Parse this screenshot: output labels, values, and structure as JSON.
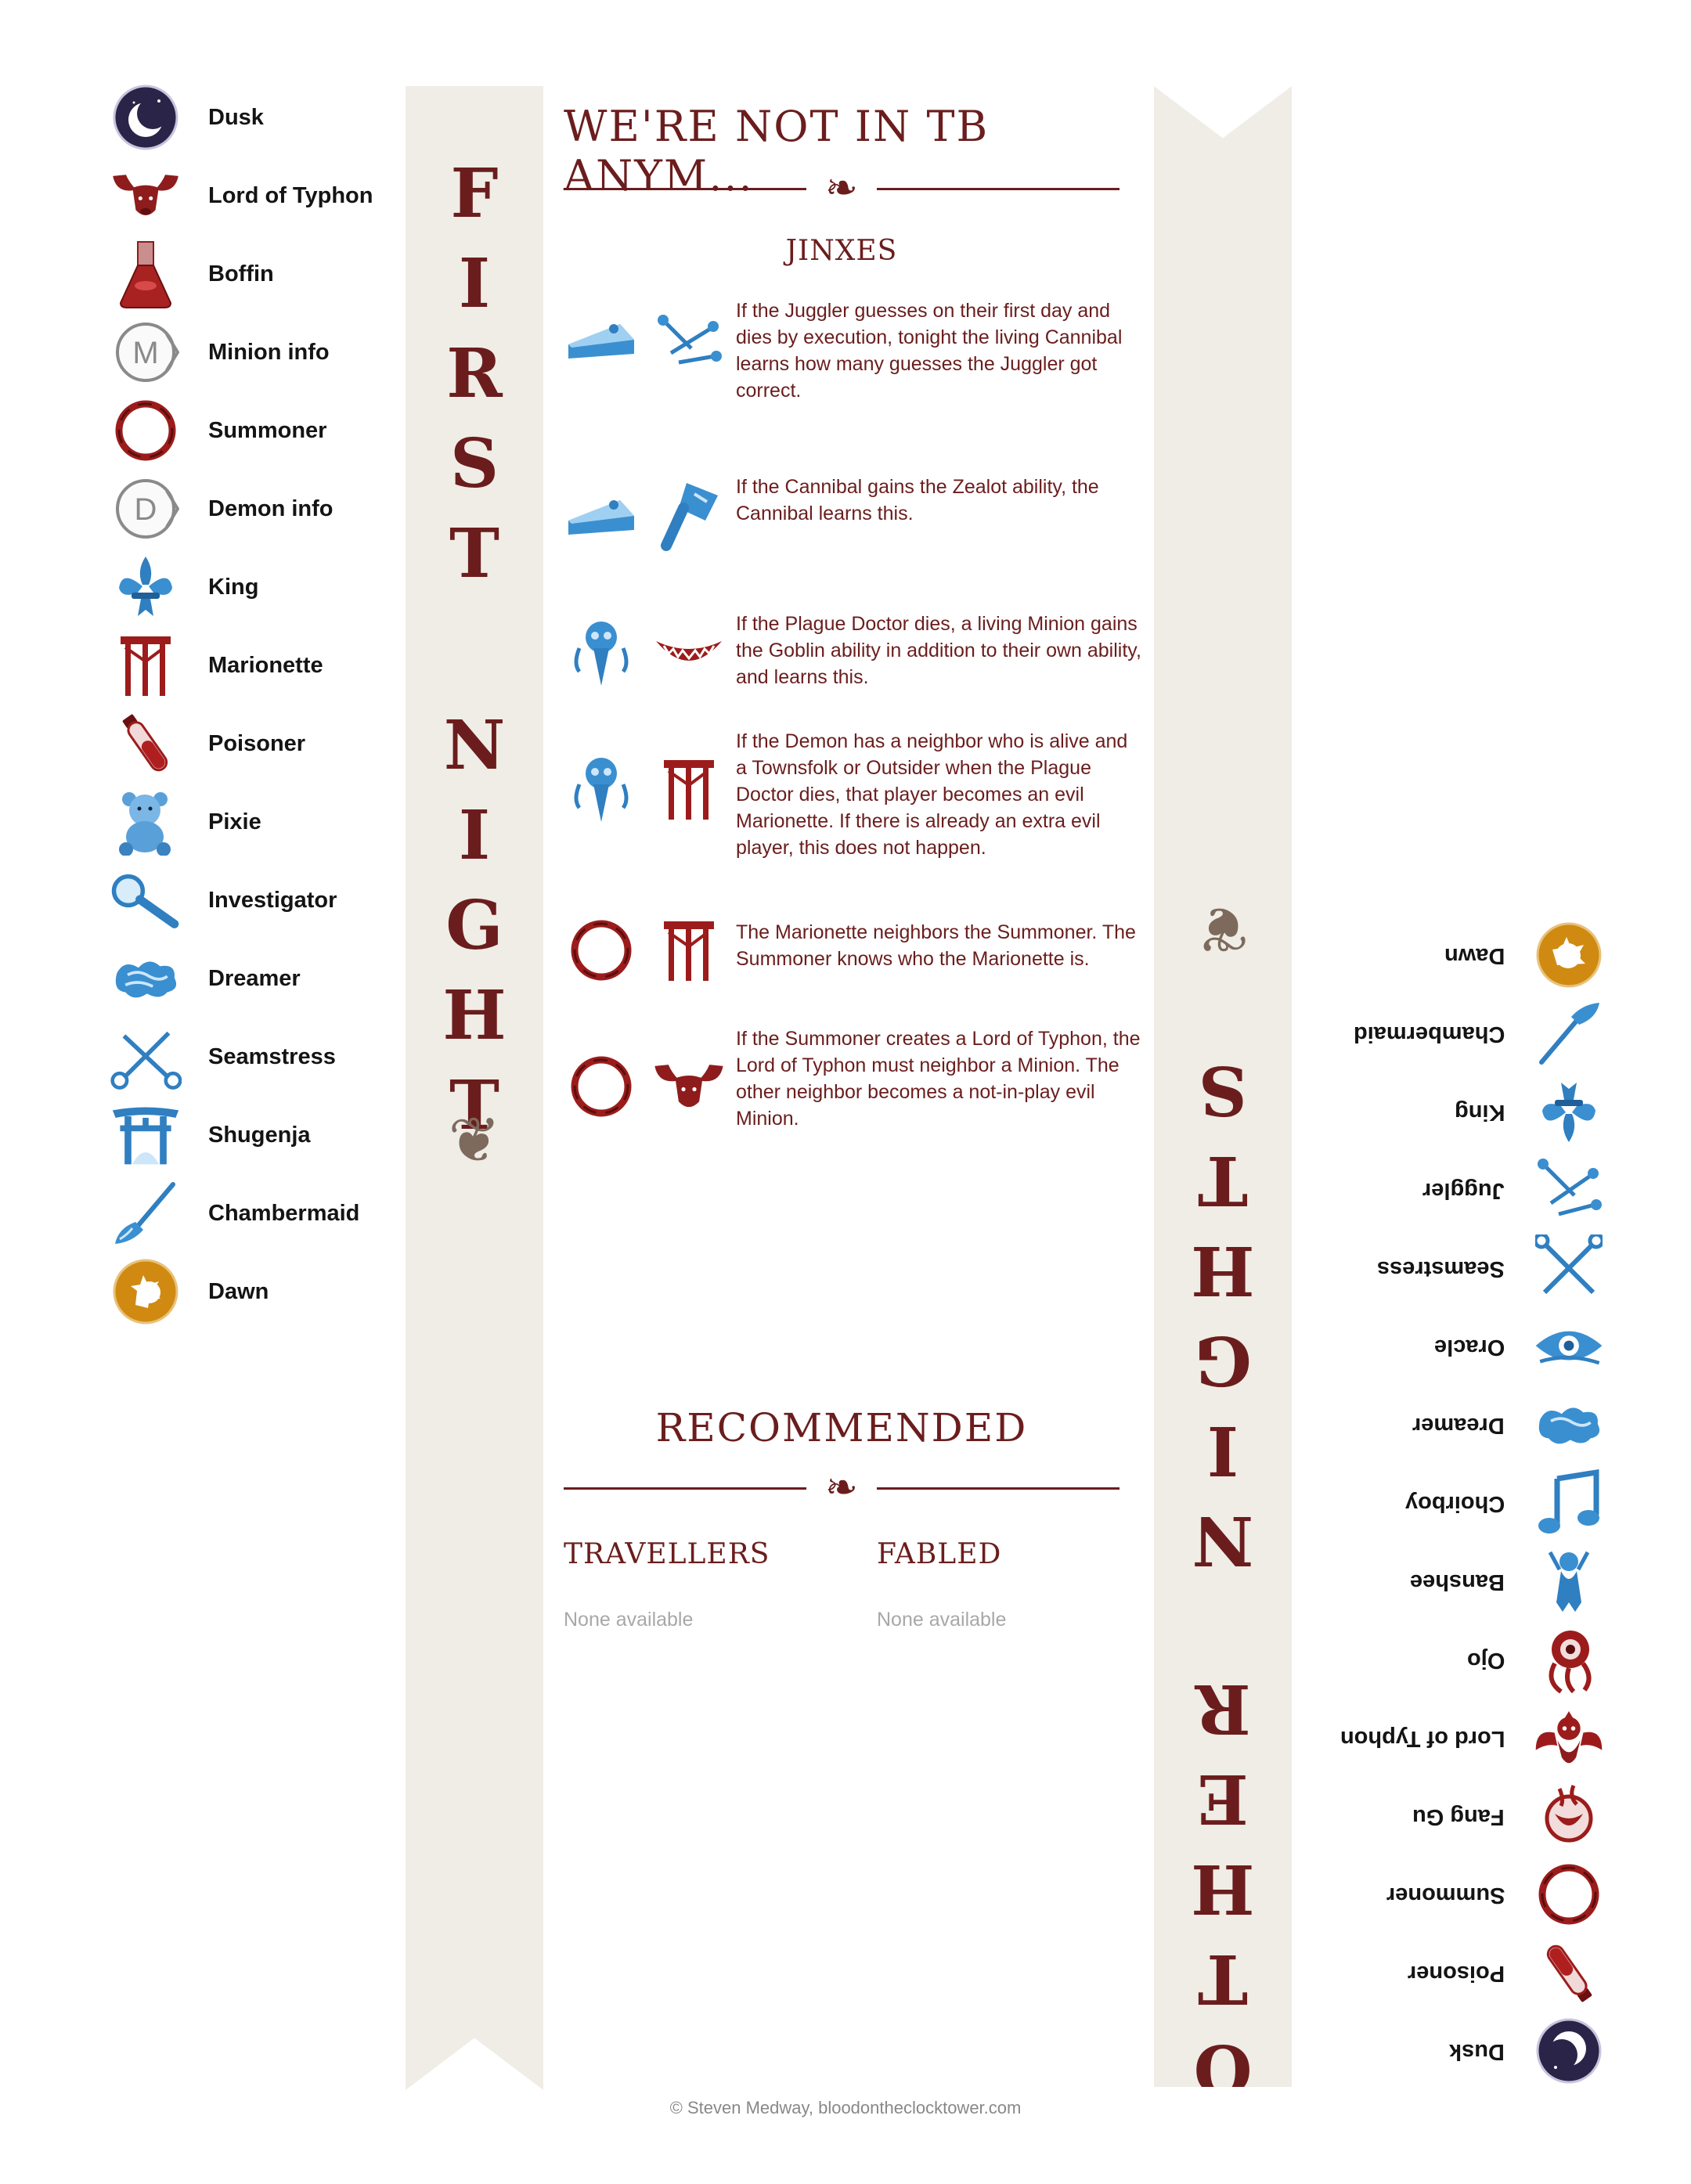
{
  "script": {
    "title": "WE'RE NOT IN TB ANYM...",
    "jinxes_heading": "JINXES",
    "recommended_heading": "RECOMMENDED",
    "travellers_heading": "TRAVELLERS",
    "fabled_heading": "FABLED",
    "travellers_none": "None available",
    "fabled_none": "None available"
  },
  "ribbons": {
    "first_night": [
      "F",
      "I",
      "R",
      "S",
      "T",
      "",
      "N",
      "I",
      "G",
      "H",
      "T"
    ],
    "other_night": [
      "O",
      "T",
      "H",
      "E",
      "R",
      "",
      "N",
      "I",
      "G",
      "H",
      "T",
      "S"
    ]
  },
  "first_night": [
    {
      "label": "Dusk",
      "icon": "moon-icon"
    },
    {
      "label": "Lord of Typhon",
      "icon": "bull-icon"
    },
    {
      "label": "Boffin",
      "icon": "flask-icon"
    },
    {
      "label": "Minion info",
      "icon": "minion-info-icon"
    },
    {
      "label": "Summoner",
      "icon": "summoner-ring-icon"
    },
    {
      "label": "Demon info",
      "icon": "demon-info-icon"
    },
    {
      "label": "King",
      "icon": "fleur-de-lis-icon"
    },
    {
      "label": "Marionette",
      "icon": "marionette-icon"
    },
    {
      "label": "Poisoner",
      "icon": "vial-icon"
    },
    {
      "label": "Pixie",
      "icon": "teddy-bear-icon"
    },
    {
      "label": "Investigator",
      "icon": "magnifier-icon"
    },
    {
      "label": "Dreamer",
      "icon": "cloud-icon"
    },
    {
      "label": "Seamstress",
      "icon": "scissors-icon"
    },
    {
      "label": "Shugenja",
      "icon": "torii-gate-icon"
    },
    {
      "label": "Chambermaid",
      "icon": "broom-icon"
    },
    {
      "label": "Dawn",
      "icon": "sun-icon"
    }
  ],
  "other_night": [
    {
      "label": "Dawn",
      "icon": "sun-icon"
    },
    {
      "label": "Chambermaid",
      "icon": "broom-icon"
    },
    {
      "label": "King",
      "icon": "fleur-de-lis-icon"
    },
    {
      "label": "Juggler",
      "icon": "juggling-pins-icon"
    },
    {
      "label": "Seamstress",
      "icon": "scissors-icon"
    },
    {
      "label": "Oracle",
      "icon": "eye-icon"
    },
    {
      "label": "Dreamer",
      "icon": "cloud-icon"
    },
    {
      "label": "Choirboy",
      "icon": "music-note-icon"
    },
    {
      "label": "Banshee",
      "icon": "banshee-icon"
    },
    {
      "label": "Ojo",
      "icon": "ojo-icon"
    },
    {
      "label": "Lord of Typhon",
      "icon": "typhon-icon"
    },
    {
      "label": "Fang Gu",
      "icon": "fang-gu-icon"
    },
    {
      "label": "Summoner",
      "icon": "summoner-ring-icon"
    },
    {
      "label": "Poisoner",
      "icon": "vial-icon"
    },
    {
      "label": "Dusk",
      "icon": "moon-icon"
    }
  ],
  "jinxes": [
    {
      "icons": [
        "pie-icon",
        "juggling-pins-icon"
      ],
      "text": "If the Juggler guesses on their first day and dies by execution, tonight the living Cannibal learns how many guesses the Juggler got correct."
    },
    {
      "icons": [
        "pie-icon",
        "zealot-icon"
      ],
      "text": "If the Cannibal gains the Zealot ability, the Cannibal learns this."
    },
    {
      "icons": [
        "plague-doctor-icon",
        "goblin-grin-icon"
      ],
      "text": "If the Plague Doctor dies, a living Minion gains the Goblin ability in addition to their own ability, and learns this."
    },
    {
      "icons": [
        "plague-doctor-icon",
        "marionette-icon"
      ],
      "text": "If the Demon has a neighbor who is alive and a Townsfolk or Outsider when the Plague Doctor dies, that player becomes an evil Marionette. If there is already an extra evil player, this does not happen."
    },
    {
      "icons": [
        "summoner-ring-icon",
        "marionette-icon"
      ],
      "text": "The Marionette neighbors the Summoner. The Summoner knows who the Marionette is."
    },
    {
      "icons": [
        "summoner-ring-icon",
        "bull-icon"
      ],
      "text": "If the Summoner creates a Lord of Typhon, the Lord of Typhon must neighbor a Minion. The other neighbor becomes a not-in-play evil Minion."
    }
  ],
  "footer": "© Steven Medway, bloodontheclocktower.com",
  "colors": {
    "accent": "#6b1d1d",
    "ribbon": "#efede6",
    "blue": "#2f7fc1",
    "red": "#8e1c1c",
    "gold": "#d08a12",
    "night": "#2a2448"
  }
}
